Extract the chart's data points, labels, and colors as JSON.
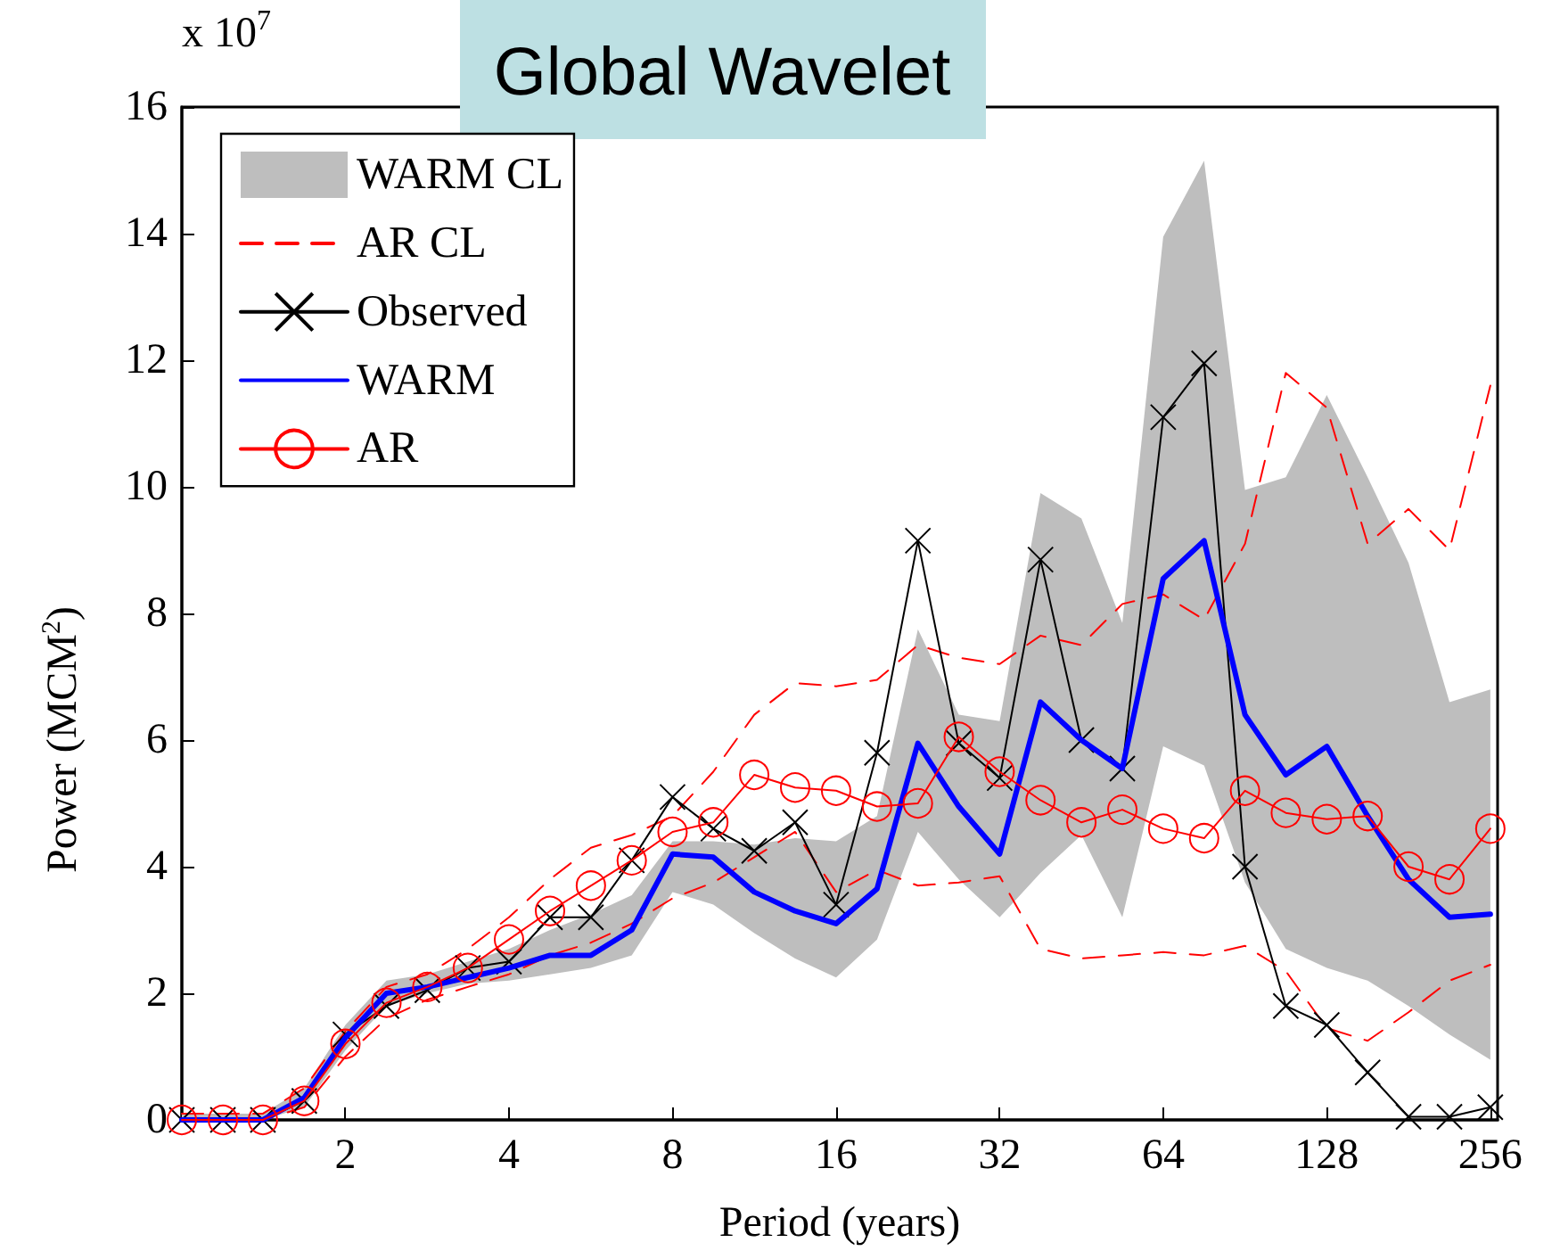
{
  "chart_data": {
    "type": "line",
    "title": "Global Wavelet",
    "xlabel": "Period (years)",
    "ylabel": "Power (MCM$^{2}$)",
    "annotations": [
      "x 10$^{7}$"
    ],
    "log": "x",
    "xlim": [
      1,
      264
    ],
    "xticks": [
      2,
      4,
      8,
      16,
      32,
      64,
      128,
      256
    ],
    "ylim": [
      0,
      16
    ],
    "yticks": [
      0,
      2,
      4,
      6,
      8,
      10,
      12,
      14,
      16
    ],
    "grid": false,
    "legend": "top left",
    "x": [
      1,
      1.19,
      1.41,
      1.68,
      2,
      2.38,
      2.83,
      3.36,
      4,
      4.76,
      5.66,
      6.73,
      8,
      9.51,
      11.31,
      13.45,
      16,
      19.03,
      22.63,
      26.91,
      32,
      38.05,
      45.25,
      53.82,
      64,
      76.11,
      90.51,
      107.6,
      128,
      152.2,
      181,
      215.3,
      256
    ],
    "series": [
      {
        "name": "WARM CL",
        "type": "area",
        "color": "#bebebe",
        "values": [
          null,
          null,
          null,
          null,
          null,
          null,
          null,
          null,
          null,
          null,
          null,
          null,
          null,
          null,
          null,
          null,
          null,
          null,
          null,
          null,
          null,
          null,
          null,
          null,
          null,
          null,
          null,
          null,
          null,
          null,
          null,
          null,
          null
        ],
        "lower": [
          0,
          0,
          0,
          0.2,
          1.1,
          1.8,
          2.0,
          2.15,
          2.2,
          2.3,
          2.4,
          2.6,
          3.6,
          3.4,
          2.95,
          2.55,
          2.25,
          2.85,
          4.55,
          3.8,
          3.2,
          3.9,
          4.5,
          3.2,
          5.9,
          5.6,
          3.75,
          2.7,
          2.4,
          2.2,
          1.8,
          1.35,
          0.95
        ],
        "upper": [
          0.1,
          0.1,
          0.1,
          0.5,
          1.5,
          2.2,
          2.3,
          2.5,
          2.7,
          3.0,
          3.25,
          3.55,
          4.4,
          4.4,
          4.35,
          4.45,
          4.4,
          4.8,
          7.75,
          6.4,
          6.3,
          9.9,
          9.5,
          7.85,
          13.95,
          15.15,
          9.95,
          10.15,
          11.45,
          10.15,
          8.8,
          6.6,
          6.8
        ]
      },
      {
        "name": "AR CL",
        "type": "line",
        "color": "#ff0000",
        "line_style": "dashed",
        "marker": "none",
        "values": [
          0,
          0,
          0,
          0.2,
          1.0,
          1.6,
          1.9,
          2.1,
          2.3,
          2.6,
          2.8,
          3.1,
          3.5,
          3.75,
          4.15,
          4.55,
          3.6,
          3.95,
          3.7,
          3.75,
          3.85,
          2.7,
          2.55,
          2.6,
          2.65,
          2.6,
          2.75,
          2.35,
          1.45,
          1.25,
          1.7,
          2.2,
          2.45
        ]
      },
      {
        "type": "line",
        "color": "#ff0000",
        "line_style": "dashed",
        "marker": "none",
        "values": [
          0.1,
          0.1,
          0.1,
          0.5,
          1.4,
          2.1,
          2.3,
          2.7,
          3.2,
          3.8,
          4.3,
          4.5,
          4.8,
          5.5,
          6.4,
          6.9,
          6.85,
          6.95,
          7.5,
          7.3,
          7.2,
          7.65,
          7.5,
          8.15,
          8.3,
          7.9,
          9.1,
          11.8,
          11.25,
          9.1,
          9.65,
          9.0,
          11.6
        ]
      },
      {
        "name": "Observed",
        "type": "line",
        "color": "#000000",
        "marker": "cross",
        "values": [
          0,
          0,
          0,
          0.3,
          1.35,
          1.8,
          2.05,
          2.4,
          2.5,
          3.2,
          3.2,
          4.1,
          5.1,
          4.6,
          4.25,
          4.7,
          3.4,
          5.8,
          9.15,
          5.95,
          5.4,
          8.85,
          6.0,
          5.55,
          11.1,
          11.95,
          4.0,
          1.8,
          1.5,
          0.75,
          0.05,
          0.05,
          0.2
        ]
      },
      {
        "name": "WARM",
        "type": "line",
        "color": "#0000ff",
        "marker": "none",
        "values": [
          0,
          0,
          0,
          0.35,
          1.3,
          2.0,
          2.1,
          2.25,
          2.4,
          2.6,
          2.6,
          3.0,
          4.2,
          4.15,
          3.6,
          3.3,
          3.1,
          3.65,
          5.95,
          4.95,
          4.2,
          6.6,
          6.0,
          5.55,
          8.55,
          9.15,
          6.4,
          5.45,
          5.9,
          4.8,
          3.8,
          3.2,
          3.25
        ]
      },
      {
        "name": "AR",
        "type": "line",
        "color": "#ff0000",
        "marker": "circle",
        "values": [
          0,
          0,
          0,
          0.3,
          1.2,
          1.85,
          2.1,
          2.4,
          2.85,
          3.3,
          3.7,
          4.1,
          4.55,
          4.7,
          5.45,
          5.25,
          5.2,
          4.95,
          5.0,
          6.05,
          5.5,
          5.05,
          4.7,
          4.9,
          4.6,
          4.45,
          5.2,
          4.85,
          4.75,
          4.8,
          4.0,
          3.8,
          4.6
        ]
      }
    ]
  }
}
